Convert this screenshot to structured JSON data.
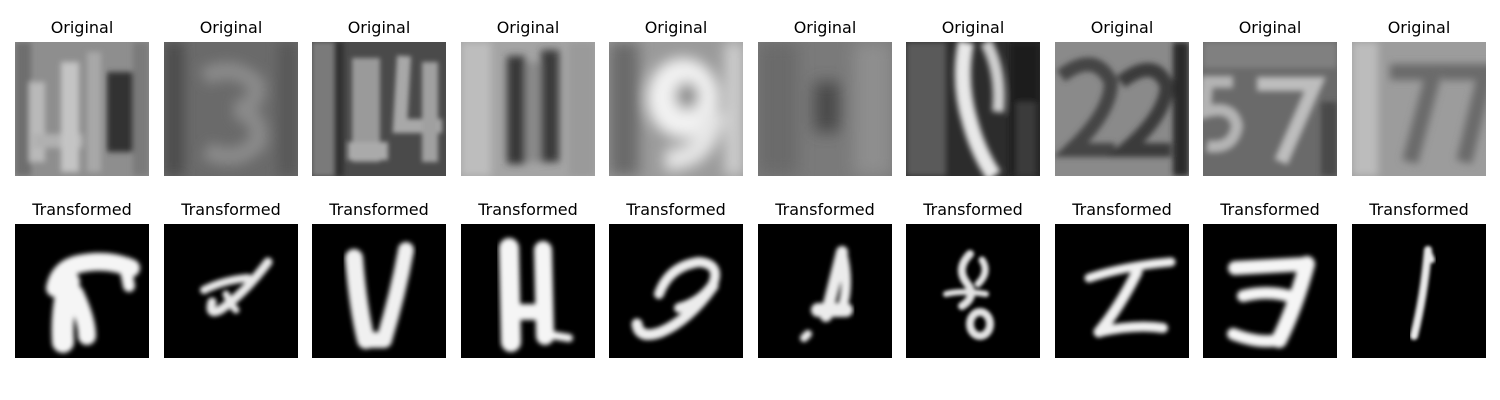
{
  "row_titles": {
    "original": "Original",
    "transformed": "Transformed"
  },
  "samples": [
    {
      "original_icon": "svhn-digit-41-image",
      "transformed_icon": "mnist-style-glyph-image"
    },
    {
      "original_icon": "svhn-digit-3-image",
      "transformed_icon": "mnist-style-glyph-image"
    },
    {
      "original_icon": "svhn-digit-14-image",
      "transformed_icon": "mnist-style-glyph-image"
    },
    {
      "original_icon": "svhn-digit-11-image",
      "transformed_icon": "mnist-style-glyph-image"
    },
    {
      "original_icon": "svhn-digit-9-image",
      "transformed_icon": "mnist-style-glyph-image"
    },
    {
      "original_icon": "svhn-digit-blur-image",
      "transformed_icon": "mnist-style-glyph-image"
    },
    {
      "original_icon": "svhn-digit-face-image",
      "transformed_icon": "mnist-style-glyph-image"
    },
    {
      "original_icon": "svhn-digit-22-image",
      "transformed_icon": "mnist-style-glyph-image"
    },
    {
      "original_icon": "svhn-digit-57-image",
      "transformed_icon": "mnist-style-glyph-image"
    },
    {
      "original_icon": "svhn-digit-77-image",
      "transformed_icon": "mnist-style-glyph-image"
    }
  ],
  "colors": {
    "title_text": "#000000",
    "background": "#ffffff",
    "transformed_bg": "#000000"
  }
}
